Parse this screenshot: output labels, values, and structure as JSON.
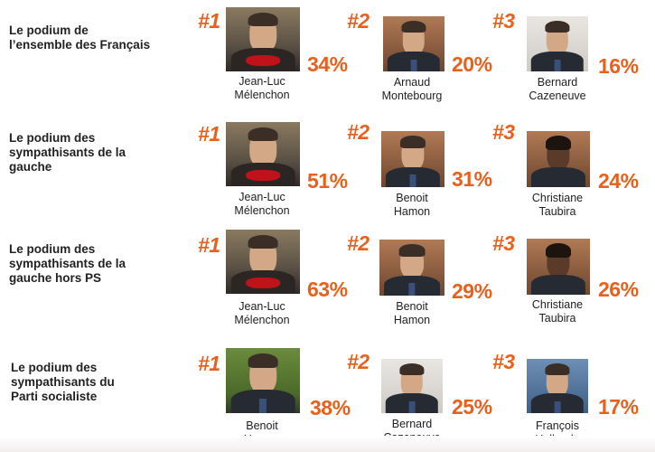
{
  "rows": [
    {
      "title": "Le podium de\nl’ensemble des Français",
      "entries": [
        {
          "rank": "#1",
          "name": "Jean-Luc\nMélenchon",
          "percent": "34%",
          "photo": "jean-luc-melenchon-photo"
        },
        {
          "rank": "#2",
          "name": "Arnaud\nMontebourg",
          "percent": "20%",
          "photo": "arnaud-montebourg-photo"
        },
        {
          "rank": "#3",
          "name": "Bernard\nCazeneuve",
          "percent": "16%",
          "photo": "bernard-cazeneuve-photo"
        }
      ]
    },
    {
      "title": "Le podium des\nsympathisants de la gauche",
      "entries": [
        {
          "rank": "#1",
          "name": "Jean-Luc\nMélenchon",
          "percent": "51%",
          "photo": "jean-luc-melenchon-photo"
        },
        {
          "rank": "#2",
          "name": "Benoit\nHamon",
          "percent": "31%",
          "photo": "benoit-hamon-photo"
        },
        {
          "rank": "#3",
          "name": "Christiane\nTaubira",
          "percent": "24%",
          "photo": "christiane-taubira-photo"
        }
      ]
    },
    {
      "title": "Le podium des\nsympathisants de la\ngauche hors PS",
      "entries": [
        {
          "rank": "#1",
          "name": "Jean-Luc\nMélenchon",
          "percent": "63%",
          "photo": "jean-luc-melenchon-photo"
        },
        {
          "rank": "#2",
          "name": "Benoit\nHamon",
          "percent": "29%",
          "photo": "benoit-hamon-photo"
        },
        {
          "rank": "#3",
          "name": "Christiane\nTaubira",
          "percent": "26%",
          "photo": "christiane-taubira-photo"
        }
      ]
    },
    {
      "title": "Le podium des\nsympathisants du\nParti socialiste",
      "entries": [
        {
          "rank": "#1",
          "name": "Benoit\nHamon",
          "percent": "38%",
          "photo": "benoit-hamon-photo"
        },
        {
          "rank": "#2",
          "name": "Bernard\nCazeneuve",
          "percent": "25%",
          "photo": "bernard-cazeneuve-photo"
        },
        {
          "rank": "#3",
          "name": "François\nHollande",
          "percent": "17%",
          "photo": "francois-hollande-photo"
        }
      ]
    }
  ],
  "colors": {
    "accent": "#e8601c",
    "text": "#222222"
  }
}
